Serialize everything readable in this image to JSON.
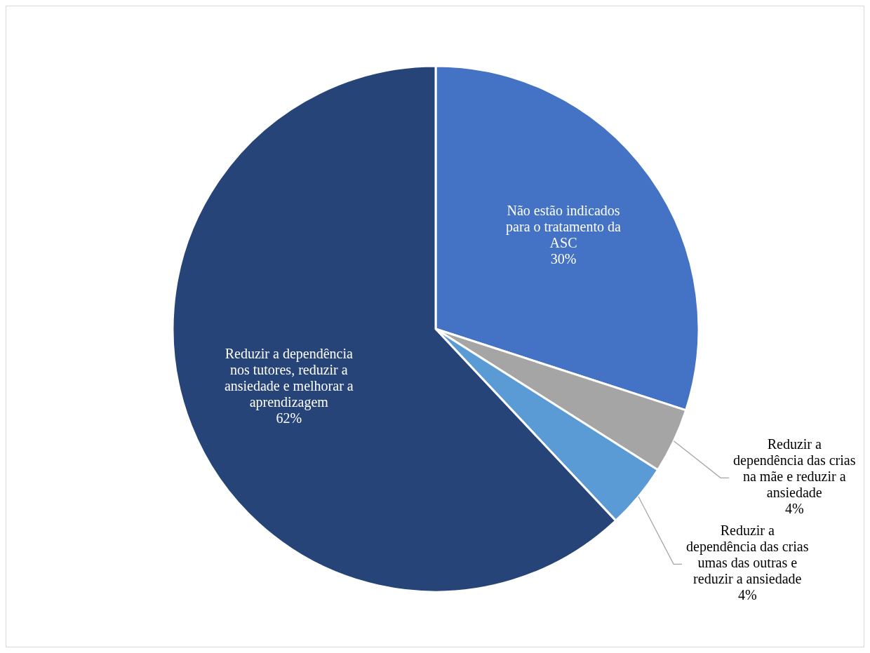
{
  "chart_data": {
    "type": "pie",
    "categories": [
      "Não estão indicados para o tratamento da ASC",
      "Reduzir a dependência das crias na mãe e reduzir a ansiedade",
      "Reduzir a dependência das crias umas das outras e reduzir a ansiedade",
      "Reduzir a dependência nos tutores, reduzir a ansiedade e melhorar a aprendizagem"
    ],
    "values": [
      30,
      4,
      4,
      62
    ],
    "colors": [
      "#4472c4",
      "#a5a5a5",
      "#5b9bd5",
      "#264478"
    ],
    "value_labels": [
      "30%",
      "4%",
      "4%",
      "62%"
    ]
  }
}
